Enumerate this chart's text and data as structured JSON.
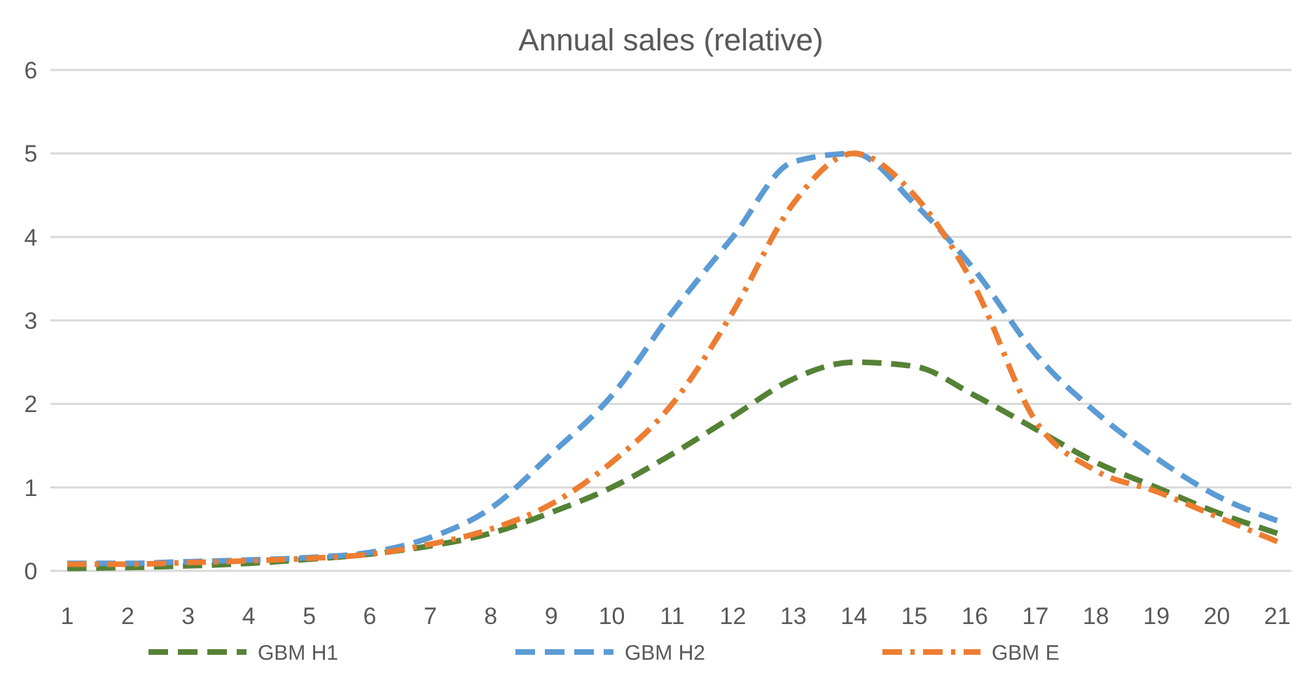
{
  "chart_data": {
    "type": "line",
    "title": "Annual sales (relative)",
    "categories": [
      "1",
      "2",
      "3",
      "4",
      "5",
      "6",
      "7",
      "8",
      "9",
      "10",
      "11",
      "12",
      "13",
      "14",
      "15",
      "16",
      "17",
      "18",
      "19",
      "20",
      "21"
    ],
    "series": [
      {
        "name": "GBM H1",
        "color": "#548235",
        "line_style": "dashed",
        "values": [
          0.03,
          0.04,
          0.06,
          0.09,
          0.14,
          0.2,
          0.3,
          0.45,
          0.7,
          1.0,
          1.4,
          1.85,
          2.3,
          2.5,
          2.45,
          2.1,
          1.7,
          1.3,
          1.0,
          0.7,
          0.45
        ]
      },
      {
        "name": "GBM H2",
        "color": "#5b9bd5",
        "line_style": "dashed",
        "values": [
          0.09,
          0.09,
          0.11,
          0.13,
          0.16,
          0.22,
          0.4,
          0.75,
          1.4,
          2.1,
          3.1,
          4.0,
          4.9,
          5.0,
          4.4,
          3.6,
          2.6,
          1.9,
          1.35,
          0.9,
          0.6
        ]
      },
      {
        "name": "GBM E",
        "color": "#ed7d31",
        "line_style": "dashdot",
        "values": [
          0.08,
          0.08,
          0.1,
          0.12,
          0.15,
          0.2,
          0.32,
          0.5,
          0.8,
          1.3,
          2.0,
          3.1,
          4.4,
          5.0,
          4.5,
          3.4,
          1.8,
          1.2,
          0.95,
          0.65,
          0.35
        ]
      }
    ],
    "ylim": [
      0,
      6
    ],
    "yticks": [
      0,
      1,
      2,
      3,
      4,
      5,
      6
    ],
    "grid": "y",
    "legend": "bottom"
  }
}
